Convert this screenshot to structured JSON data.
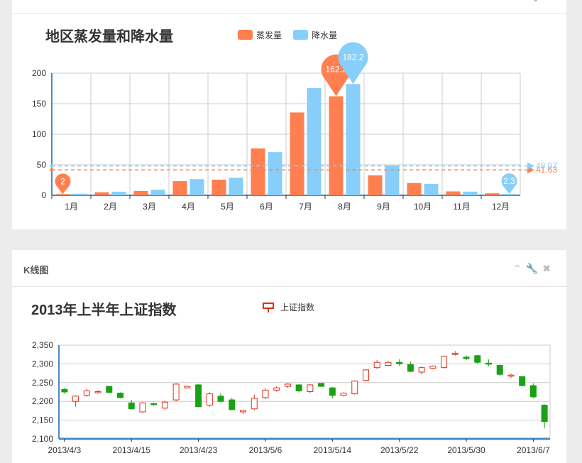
{
  "panels": [
    {
      "title": "",
      "tools": [
        "chevron-up-icon",
        "wrench-icon",
        "close-icon"
      ]
    },
    {
      "title": "K线图",
      "tools": [
        "chevron-up-icon",
        "wrench-icon",
        "close-icon"
      ]
    }
  ],
  "tool_glyphs": {
    "collapse": "⌃",
    "settings": "🔧",
    "close": "✖"
  },
  "chart_data": [
    {
      "type": "bar",
      "title": "地区蒸发量和降水量",
      "categories": [
        "1月",
        "2月",
        "3月",
        "4月",
        "5月",
        "6月",
        "7月",
        "8月",
        "9月",
        "10月",
        "11月",
        "12月"
      ],
      "series": [
        {
          "name": "蒸发量",
          "color": "#ff7f50",
          "values": [
            2.0,
            4.9,
            7.0,
            23.2,
            25.6,
            76.7,
            135.6,
            162.2,
            32.6,
            20.0,
            6.4,
            3.3
          ]
        },
        {
          "name": "降水量",
          "color": "#87cefa",
          "values": [
            2.6,
            5.9,
            9.0,
            26.4,
            28.7,
            70.7,
            175.6,
            182.2,
            48.7,
            18.8,
            6.0,
            2.3
          ]
        }
      ],
      "mark_points": [
        {
          "series": 0,
          "category": "1月",
          "label": "2"
        },
        {
          "series": 0,
          "category": "8月",
          "label": "162.2"
        },
        {
          "series": 1,
          "category": "8月",
          "label": "182.2"
        },
        {
          "series": 1,
          "category": "12月",
          "label": "2.3"
        }
      ],
      "mark_lines": [
        {
          "series": 0,
          "value": 41.63,
          "label": "41.63"
        },
        {
          "series": 1,
          "value": 48.07,
          "label": "48.07"
        }
      ],
      "ylim": [
        0,
        200
      ],
      "yticks": [
        "0",
        "50",
        "100",
        "150",
        "200"
      ],
      "legend": "top-center",
      "grid": true
    },
    {
      "type": "candlestick",
      "title": "2013年上半年上证指数",
      "series_name": "上证指数",
      "up_color": "#e1301b",
      "down_color": "#1aa116",
      "ylim": [
        2100,
        2350
      ],
      "yticks": [
        "2,100",
        "2,150",
        "2,200",
        "2,250",
        "2,300",
        "2,350"
      ],
      "xticks": [
        "2013/4/3",
        "2013/4/15",
        "2013/4/23",
        "2013/5/6",
        "2013/5/14",
        "2013/5/22",
        "2013/5/30",
        "2013/6/7"
      ],
      "xtick_indices": [
        0,
        6,
        12,
        18,
        24,
        30,
        36,
        42
      ],
      "candles": [
        [
          2232,
          2225,
          2220,
          2236
        ],
        [
          2200,
          2214,
          2186,
          2216
        ],
        [
          2216,
          2228,
          2212,
          2234
        ],
        [
          2224,
          2226,
          2220,
          2230
        ],
        [
          2240,
          2224,
          2222,
          2242
        ],
        [
          2222,
          2210,
          2208,
          2224
        ],
        [
          2196,
          2180,
          2178,
          2204
        ],
        [
          2172,
          2196,
          2170,
          2198
        ],
        [
          2194,
          2192,
          2188,
          2196
        ],
        [
          2182,
          2198,
          2176,
          2202
        ],
        [
          2204,
          2246,
          2200,
          2248
        ],
        [
          2236,
          2240,
          2236,
          2242
        ],
        [
          2244,
          2186,
          2184,
          2246
        ],
        [
          2190,
          2220,
          2186,
          2224
        ],
        [
          2214,
          2200,
          2196,
          2222
        ],
        [
          2204,
          2178,
          2176,
          2210
        ],
        [
          2172,
          2176,
          2166,
          2178
        ],
        [
          2180,
          2208,
          2176,
          2218
        ],
        [
          2210,
          2230,
          2206,
          2236
        ],
        [
          2230,
          2236,
          2226,
          2240
        ],
        [
          2240,
          2246,
          2236,
          2248
        ],
        [
          2244,
          2228,
          2224,
          2246
        ],
        [
          2226,
          2244,
          2222,
          2246
        ],
        [
          2248,
          2240,
          2238,
          2250
        ],
        [
          2236,
          2216,
          2208,
          2238
        ],
        [
          2216,
          2222,
          2214,
          2224
        ],
        [
          2220,
          2254,
          2218,
          2256
        ],
        [
          2256,
          2284,
          2254,
          2286
        ],
        [
          2290,
          2304,
          2286,
          2310
        ],
        [
          2296,
          2304,
          2294,
          2308
        ],
        [
          2304,
          2300,
          2294,
          2312
        ],
        [
          2298,
          2280,
          2278,
          2306
        ],
        [
          2278,
          2290,
          2272,
          2294
        ],
        [
          2288,
          2294,
          2286,
          2296
        ],
        [
          2290,
          2320,
          2288,
          2322
        ],
        [
          2326,
          2328,
          2322,
          2334
        ],
        [
          2318,
          2314,
          2310,
          2322
        ],
        [
          2322,
          2304,
          2300,
          2324
        ],
        [
          2302,
          2300,
          2294,
          2312
        ],
        [
          2296,
          2272,
          2268,
          2298
        ],
        [
          2270,
          2270,
          2262,
          2274
        ],
        [
          2266,
          2242,
          2240,
          2268
        ],
        [
          2242,
          2212,
          2208,
          2248
        ],
        [
          2190,
          2146,
          2128,
          2192
        ]
      ]
    }
  ]
}
